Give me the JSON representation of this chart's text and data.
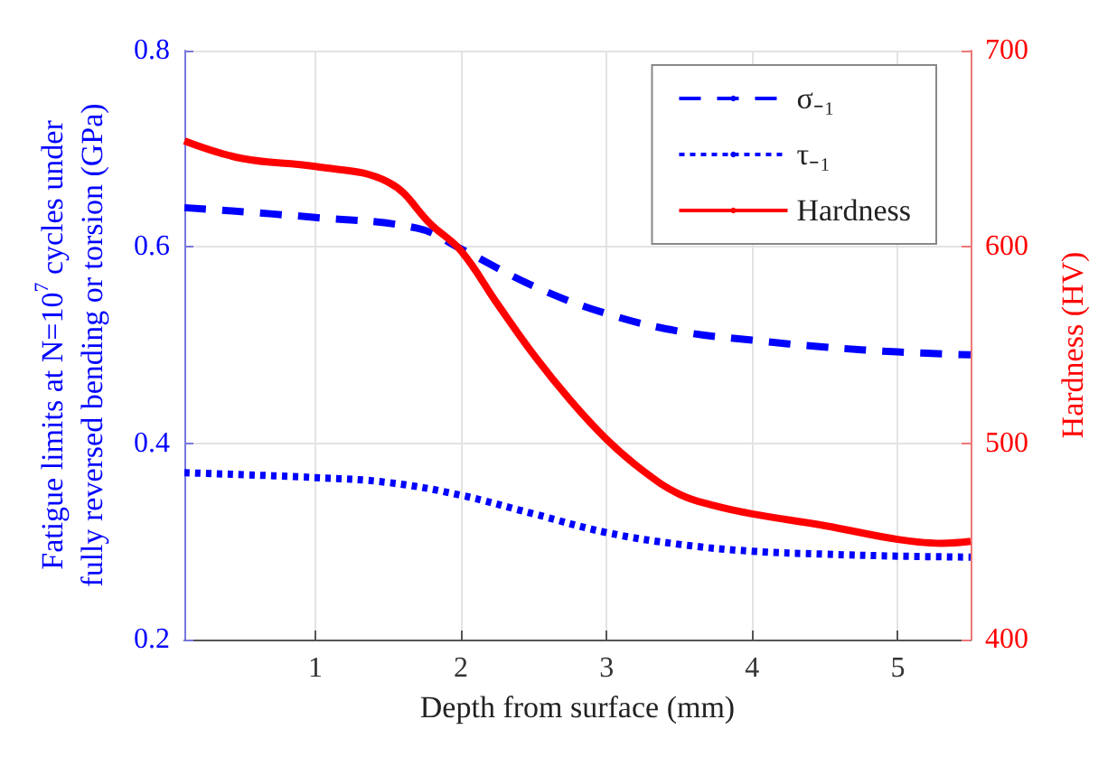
{
  "chart_data": {
    "type": "line",
    "xlabel": "Depth from surface (mm)",
    "ylabel": "Fatigue limits at N=10$^{7}$ cycles under\nfully reversed bending or torsion (GPa)",
    "y2label": "Hardness (HV)",
    "xlim": [
      0.1,
      5.5
    ],
    "xticks": [
      1,
      2,
      3,
      4,
      5
    ],
    "ylim": [
      0.2,
      0.8
    ],
    "yticks": [
      0.2,
      0.4,
      0.6,
      0.8
    ],
    "y2lim": [
      400,
      700
    ],
    "y2ticks": [
      400,
      500,
      600,
      700
    ],
    "grid": true,
    "legend": "top right",
    "marker": "none",
    "series": [
      {
        "name": "σ₋₁",
        "color": "#0000ff",
        "line_style": "dashed",
        "x": [
          0.1,
          1,
          1.7,
          2,
          2.5,
          3,
          3.5,
          4,
          4.5,
          5,
          5.5
        ],
        "values": [
          0.64,
          0.63,
          0.619,
          0.598,
          0.56,
          0.532,
          0.514,
          0.505,
          0.498,
          0.493,
          0.49
        ]
      },
      {
        "name": "τ₋₁",
        "color": "#0000ff",
        "line_style": "dotted",
        "x": [
          0.1,
          1,
          1.5,
          2,
          2.5,
          3,
          3.5,
          4,
          4.5,
          5,
          5.5
        ],
        "values": [
          0.37,
          0.365,
          0.36,
          0.347,
          0.328,
          0.309,
          0.297,
          0.29,
          0.287,
          0.285,
          0.284
        ]
      },
      {
        "name": "Hardness",
        "color": "#ff0000",
        "line_style": "solid",
        "axis": "y2",
        "x": [
          0.1,
          0.5,
          1,
          1.5,
          1.8,
          2,
          2.25,
          2.5,
          2.75,
          3,
          3.25,
          3.5,
          3.75,
          4,
          4.5,
          5,
          5.3,
          5.5
        ],
        "values": [
          654,
          645,
          641,
          633,
          611,
          598,
          571,
          545,
          522,
          502,
          486,
          474,
          468,
          464,
          458,
          451,
          449,
          450
        ]
      }
    ]
  }
}
